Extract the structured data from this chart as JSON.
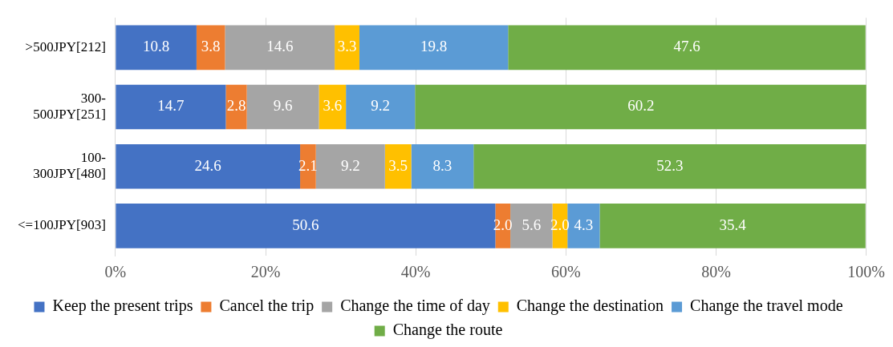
{
  "chart_data": {
    "type": "bar",
    "orientation": "horizontal",
    "stacked": true,
    "categories": [
      ">500JPY[212]",
      "300-500JPY[251]",
      "100-300JPY[480]",
      "<=100JPY[903]"
    ],
    "series": [
      {
        "name": "Keep the present trips",
        "color": "#4472c4",
        "values": [
          10.8,
          14.7,
          24.6,
          50.6
        ],
        "value_labels": [
          "10.8",
          "14.7",
          "24.6",
          "50.6"
        ]
      },
      {
        "name": "Cancel the trip",
        "color": "#ed7d31",
        "values": [
          3.8,
          2.8,
          2.1,
          2.0
        ],
        "value_labels": [
          "3.8",
          "2.8",
          "2.1",
          "2.0"
        ]
      },
      {
        "name": "Change the time of day",
        "color": "#a5a5a5",
        "values": [
          14.6,
          9.6,
          9.2,
          5.6
        ],
        "value_labels": [
          "14.6",
          "9.6",
          "9.2",
          "5.6"
        ]
      },
      {
        "name": "Change the destination",
        "color": "#ffc000",
        "values": [
          3.3,
          3.6,
          3.5,
          2.0
        ],
        "value_labels": [
          "3.3",
          "3.6",
          "3.5",
          "2.0"
        ]
      },
      {
        "name": "Change the travel mode",
        "color": "#5b9bd5",
        "values": [
          19.8,
          9.2,
          8.3,
          4.3
        ],
        "value_labels": [
          "19.8",
          "9.2",
          "8.3",
          "4.3"
        ]
      },
      {
        "name": "Change the route",
        "color": "#70ad47",
        "values": [
          47.6,
          60.2,
          52.3,
          35.4
        ],
        "value_labels": [
          "47.6",
          "60.2",
          "52.3",
          "35.4"
        ]
      }
    ],
    "xlim": [
      0,
      100
    ],
    "xticks": [
      {
        "value": 0,
        "label": "0%"
      },
      {
        "value": 20,
        "label": "20%"
      },
      {
        "value": 40,
        "label": "40%"
      },
      {
        "value": 60,
        "label": "60%"
      },
      {
        "value": 80,
        "label": "80%"
      },
      {
        "value": 100,
        "label": "100%"
      }
    ],
    "grid": "x",
    "legend": "bottom"
  }
}
